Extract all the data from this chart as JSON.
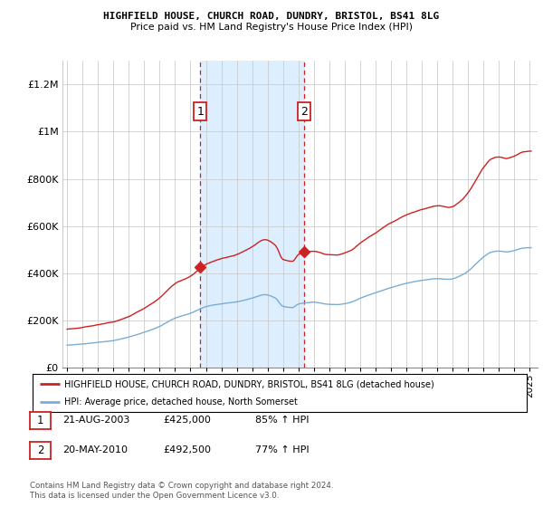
{
  "title1": "HIGHFIELD HOUSE, CHURCH ROAD, DUNDRY, BRISTOL, BS41 8LG",
  "title2": "Price paid vs. HM Land Registry's House Price Index (HPI)",
  "ylim": [
    0,
    1300000
  ],
  "xlim_start": 1994.7,
  "xlim_end": 2025.5,
  "yticks": [
    0,
    200000,
    400000,
    600000,
    800000,
    1000000,
    1200000
  ],
  "ytick_labels": [
    "£0",
    "£200K",
    "£400K",
    "£600K",
    "£800K",
    "£1M",
    "£1.2M"
  ],
  "xtick_years": [
    1995,
    1996,
    1997,
    1998,
    1999,
    2000,
    2001,
    2002,
    2003,
    2004,
    2005,
    2006,
    2007,
    2008,
    2009,
    2010,
    2011,
    2012,
    2013,
    2014,
    2015,
    2016,
    2017,
    2018,
    2019,
    2020,
    2021,
    2022,
    2023,
    2024,
    2025
  ],
  "sale1_x": 2003.64,
  "sale1_y": 425000,
  "sale2_x": 2010.38,
  "sale2_y": 492500,
  "shade_color": "#ddeeff",
  "legend_line1": "HIGHFIELD HOUSE, CHURCH ROAD, DUNDRY, BRISTOL, BS41 8LG (detached house)",
  "legend_line2": "HPI: Average price, detached house, North Somerset",
  "table_row1": [
    "1",
    "21-AUG-2003",
    "£425,000",
    "85% ↑ HPI"
  ],
  "table_row2": [
    "2",
    "20-MAY-2010",
    "£492,500",
    "77% ↑ HPI"
  ],
  "footnote1": "Contains HM Land Registry data © Crown copyright and database right 2024.",
  "footnote2": "This data is licensed under the Open Government Licence v3.0.",
  "hpi_color": "#7aadd4",
  "price_color": "#cc2222",
  "background_color": "#ffffff",
  "grid_color": "#cccccc"
}
